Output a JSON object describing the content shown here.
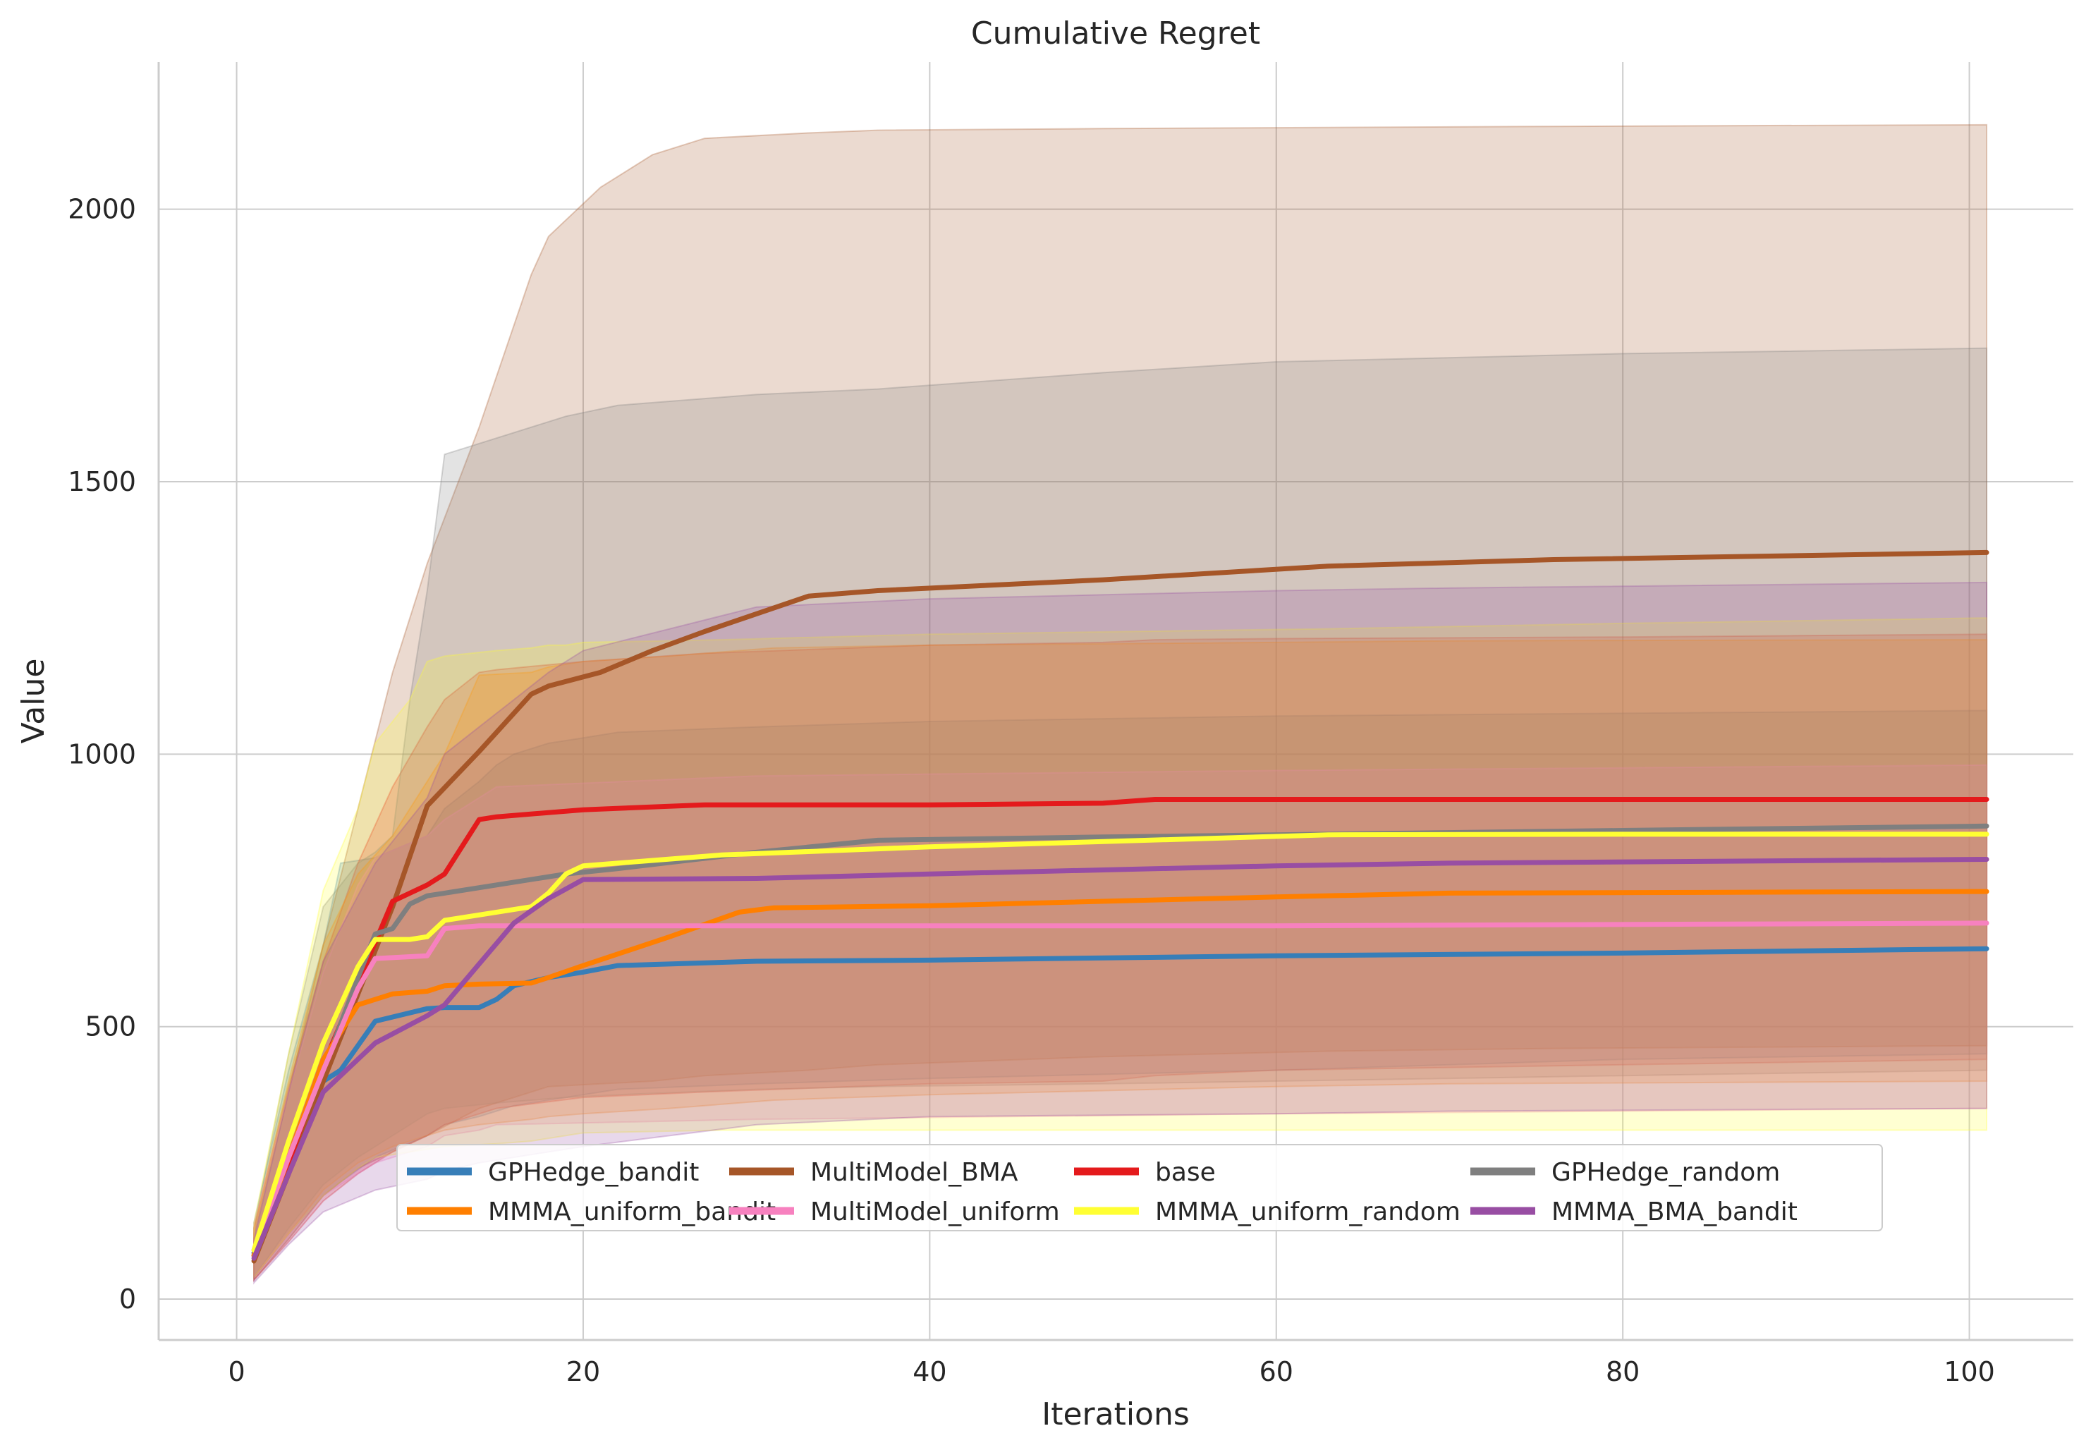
{
  "chart_data": {
    "type": "line",
    "title": "Cumulative Regret",
    "xlabel": "Iterations",
    "ylabel": "Value",
    "xlim": [
      -4.5,
      106
    ],
    "ylim": [
      -75,
      2270
    ],
    "xticks": [
      0,
      20,
      40,
      60,
      80,
      100
    ],
    "yticks": [
      0,
      500,
      1000,
      1500,
      2000
    ],
    "grid": true,
    "legend_position": "lower-center",
    "legend_columns": 4,
    "band_opacity": 0.22,
    "series": [
      {
        "name": "GPHedge_bandit",
        "color": "#377eb8",
        "x": [
          1,
          3,
          5,
          6,
          8,
          11,
          12,
          14,
          15,
          16,
          18,
          20,
          22,
          30,
          40,
          60,
          80,
          101
        ],
        "y": [
          85,
          260,
          400,
          420,
          510,
          533,
          535,
          535,
          550,
          575,
          590,
          600,
          612,
          620,
          622,
          630,
          635,
          643
        ],
        "lower": [
          40,
          120,
          190,
          215,
          260,
          300,
          320,
          335,
          345,
          355,
          365,
          375,
          385,
          395,
          405,
          420,
          440,
          450
        ],
        "upper": [
          140,
          420,
          650,
          800,
          810,
          850,
          900,
          950,
          980,
          1000,
          1020,
          1030,
          1040,
          1050,
          1060,
          1070,
          1075,
          1080
        ]
      },
      {
        "name": "MultiModel_BMA",
        "color": "#a65628",
        "x": [
          1,
          3,
          5,
          7,
          9,
          11,
          14,
          17,
          18,
          21,
          24,
          27,
          33,
          37,
          50,
          63,
          76,
          101
        ],
        "y": [
          70,
          230,
          400,
          560,
          720,
          905,
          1005,
          1110,
          1125,
          1150,
          1190,
          1225,
          1290,
          1300,
          1320,
          1345,
          1357,
          1370
        ],
        "lower": [
          35,
          110,
          190,
          240,
          270,
          300,
          350,
          380,
          390,
          395,
          400,
          410,
          420,
          430,
          445,
          455,
          460,
          465
        ],
        "upper": [
          120,
          380,
          650,
          900,
          1150,
          1350,
          1600,
          1880,
          1950,
          2040,
          2100,
          2130,
          2140,
          2145,
          2148,
          2150,
          2152,
          2155
        ]
      },
      {
        "name": "base",
        "color": "#e41a1c",
        "x": [
          1,
          3,
          5,
          7,
          9,
          11,
          12,
          14,
          15,
          20,
          27,
          40,
          50,
          53,
          60,
          80,
          101
        ],
        "y": [
          80,
          250,
          430,
          580,
          730,
          760,
          780,
          880,
          885,
          898,
          907,
          907,
          910,
          917,
          917,
          917,
          917
        ],
        "lower": [
          35,
          105,
          180,
          230,
          270,
          300,
          320,
          340,
          350,
          370,
          380,
          395,
          400,
          410,
          420,
          430,
          440
        ],
        "upper": [
          130,
          390,
          620,
          800,
          940,
          1050,
          1100,
          1150,
          1155,
          1170,
          1185,
          1200,
          1205,
          1210,
          1212,
          1215,
          1220
        ]
      },
      {
        "name": "GPHedge_random",
        "color": "#7f7f7f",
        "x": [
          1,
          3,
          5,
          7,
          8,
          9,
          10,
          11,
          12,
          15,
          19,
          22,
          30,
          37,
          50,
          60,
          80,
          101
        ],
        "y": [
          80,
          260,
          420,
          590,
          670,
          680,
          725,
          740,
          745,
          760,
          780,
          790,
          820,
          842,
          848,
          852,
          860,
          868
        ],
        "lower": [
          40,
          130,
          210,
          260,
          280,
          300,
          320,
          340,
          350,
          360,
          370,
          375,
          385,
          390,
          395,
          400,
          410,
          420
        ],
        "upper": [
          130,
          450,
          720,
          800,
          820,
          850,
          1100,
          1300,
          1550,
          1580,
          1620,
          1640,
          1660,
          1670,
          1700,
          1720,
          1735,
          1745
        ]
      },
      {
        "name": "MMMA_uniform_bandit",
        "color": "#ff7f00",
        "x": [
          1,
          3,
          5,
          7,
          9,
          11,
          12,
          14,
          17,
          18,
          20,
          25,
          29,
          31,
          40,
          60,
          70,
          101
        ],
        "y": [
          80,
          260,
          440,
          540,
          560,
          565,
          575,
          578,
          580,
          590,
          612,
          665,
          710,
          718,
          722,
          738,
          745,
          748
        ],
        "lower": [
          40,
          120,
          200,
          250,
          280,
          300,
          310,
          320,
          330,
          335,
          340,
          350,
          360,
          365,
          375,
          390,
          395,
          400
        ],
        "upper": [
          130,
          400,
          650,
          780,
          850,
          950,
          1000,
          1145,
          1150,
          1160,
          1170,
          1180,
          1190,
          1195,
          1200,
          1205,
          1208,
          1210
        ]
      },
      {
        "name": "MultiModel_uniform",
        "color": "#f781bf",
        "x": [
          1,
          3,
          5,
          7,
          8,
          11,
          12,
          14,
          15,
          30,
          60,
          101
        ],
        "y": [
          90,
          260,
          420,
          570,
          625,
          630,
          680,
          685,
          685,
          685,
          685,
          690
        ],
        "lower": [
          40,
          120,
          190,
          230,
          250,
          280,
          300,
          310,
          320,
          330,
          340,
          350
        ],
        "upper": [
          140,
          380,
          600,
          760,
          810,
          850,
          880,
          920,
          940,
          960,
          970,
          980
        ]
      },
      {
        "name": "MMMA_uniform_random",
        "color": "#ffff33",
        "x": [
          1,
          3,
          5,
          7,
          8,
          10,
          11,
          12,
          15,
          17,
          18,
          19,
          20,
          28,
          40,
          63,
          80,
          101
        ],
        "y": [
          90,
          290,
          470,
          610,
          660,
          660,
          665,
          695,
          710,
          720,
          745,
          780,
          795,
          815,
          830,
          852,
          853,
          853
        ],
        "lower": [
          40,
          120,
          190,
          240,
          260,
          270,
          275,
          280,
          285,
          290,
          295,
          300,
          305,
          310,
          310,
          310,
          310,
          310
        ],
        "upper": [
          140,
          450,
          750,
          900,
          1020,
          1100,
          1170,
          1180,
          1190,
          1195,
          1200,
          1200,
          1205,
          1210,
          1220,
          1230,
          1240,
          1250
        ]
      },
      {
        "name": "MMMA_BMA_bandit",
        "color": "#984ea3",
        "x": [
          1,
          3,
          5,
          8,
          11,
          12,
          14,
          16,
          18,
          20,
          30,
          40,
          60,
          70,
          101
        ],
        "y": [
          75,
          230,
          380,
          470,
          520,
          540,
          615,
          690,
          735,
          770,
          772,
          780,
          795,
          800,
          807
        ],
        "lower": [
          30,
          100,
          160,
          200,
          220,
          235,
          250,
          260,
          270,
          280,
          320,
          335,
          340,
          345,
          350
        ],
        "upper": [
          110,
          380,
          620,
          800,
          920,
          1000,
          1050,
          1100,
          1150,
          1190,
          1270,
          1285,
          1300,
          1305,
          1315
        ]
      }
    ]
  }
}
